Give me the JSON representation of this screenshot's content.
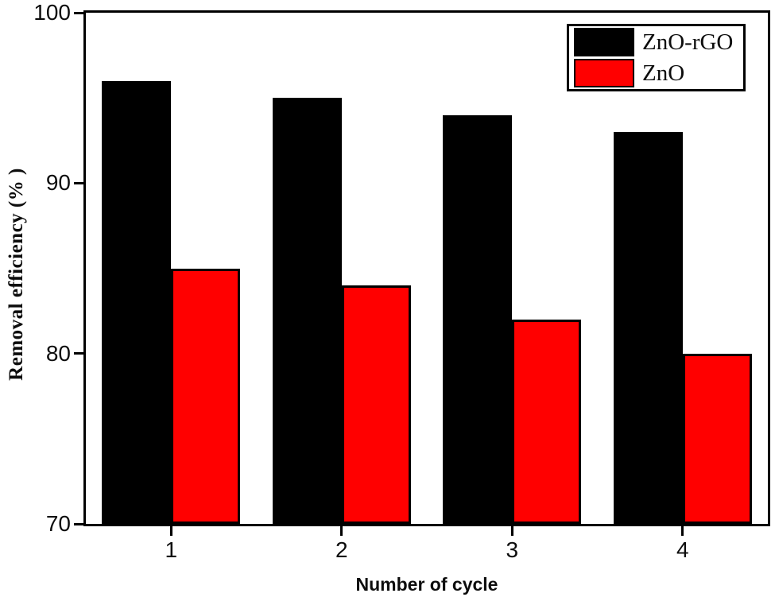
{
  "chart_data": {
    "type": "bar",
    "title": "",
    "xlabel": "Number of cycle",
    "ylabel": "Removal efficiency (% )",
    "categories": [
      "1",
      "2",
      "3",
      "4"
    ],
    "series": [
      {
        "name": "ZnO-rGO",
        "color": "#000000",
        "values": [
          96,
          95,
          94,
          93
        ]
      },
      {
        "name": "ZnO",
        "color": "#ff0000",
        "values": [
          85,
          84,
          82,
          80
        ]
      }
    ],
    "ylim": [
      70,
      100
    ],
    "yticks": [
      100,
      90,
      80,
      70
    ],
    "grid": false,
    "legend_position": "top-right",
    "axis_color": "#000000",
    "background_color": "#ffffff"
  }
}
